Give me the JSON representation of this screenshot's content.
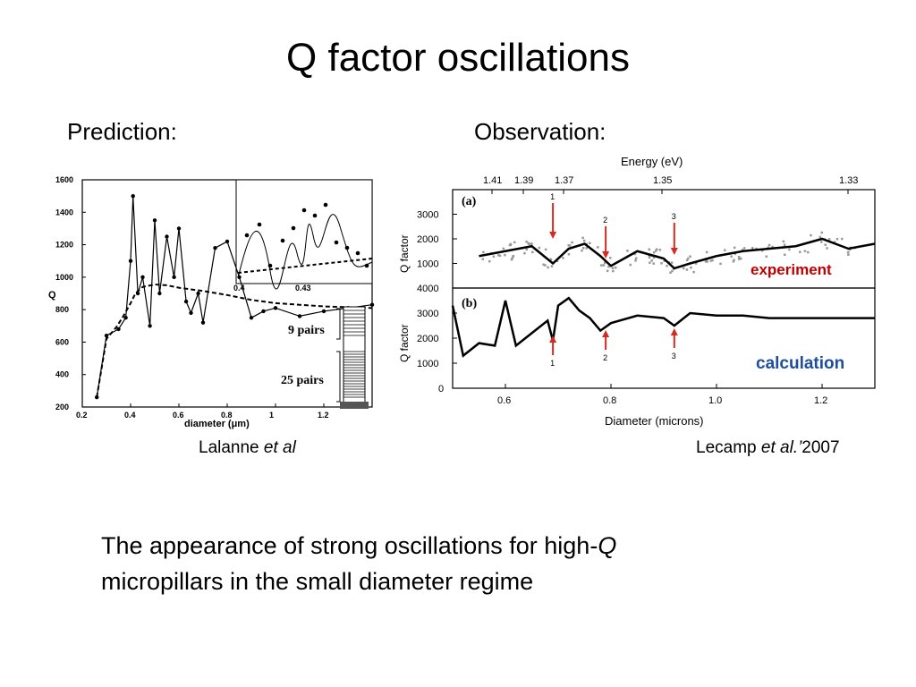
{
  "slide": {
    "title": "Q factor oscillations",
    "prediction_label": "Prediction:",
    "observation_label": "Observation:",
    "body_line1_pre": "The appearance of strong oscillations for high-",
    "body_line1_q": "Q",
    "body_line2": "micropillars in the small diameter regime"
  },
  "left_figure": {
    "caption_pre": "Lalanne ",
    "caption_em": "et al",
    "ylabel": "Q",
    "xlabel": "diameter (μm)",
    "yticks": [
      "1600",
      "1400",
      "1200",
      "1000",
      "800",
      "600",
      "400",
      "200"
    ],
    "xticks": [
      "0.2",
      "0.4",
      "0.6",
      "0.8",
      "1",
      "1.2"
    ],
    "inset_xticks": [
      "0.4",
      "0.43"
    ],
    "label_9pairs": "9 pairs",
    "label_25pairs": "25 pairs"
  },
  "right_figure": {
    "caption_pre": "Lecamp ",
    "caption_em": "et al.’",
    "caption_post": "2007",
    "top_axis_label": "Energy (eV)",
    "top_ticks": [
      "1.41",
      "1.39",
      "1.37",
      "1.35",
      "1.33"
    ],
    "panel_a_label": "(a)",
    "panel_b_label": "(b)",
    "ylabel": "Q factor",
    "a_yticks": [
      "3000",
      "2000",
      "1000"
    ],
    "b_yticks": [
      "4000",
      "3000",
      "2000",
      "1000",
      "0"
    ],
    "xticks": [
      "0.6",
      "0.8",
      "1.0",
      "1.2"
    ],
    "xlabel": "Diameter (microns)",
    "marker_labels": [
      "1",
      "2",
      "3"
    ],
    "experiment_label": "experiment",
    "calculation_label": "calculation",
    "colors": {
      "experiment": "#c00000",
      "calculation": "#1f4e9a",
      "arrow": "#d62a1e"
    }
  },
  "chart_data": [
    {
      "type": "line",
      "title": "",
      "xlabel": "diameter (μm)",
      "ylabel": "Q",
      "xlim": [
        0.2,
        1.4
      ],
      "ylim": [
        200,
        1600
      ],
      "series": [
        {
          "name": "9 pairs",
          "x": [
            0.26,
            0.3,
            0.34,
            0.37,
            0.4,
            0.42,
            0.45,
            0.5,
            0.55,
            0.6,
            0.65,
            0.7,
            0.8,
            0.9,
            1.0,
            1.1,
            1.2,
            1.3,
            1.4
          ],
          "y": [
            260,
            620,
            690,
            760,
            840,
            900,
            940,
            955,
            950,
            935,
            925,
            915,
            890,
            860,
            840,
            830,
            820,
            815,
            810
          ]
        },
        {
          "name": "25 pairs",
          "x": [
            0.26,
            0.3,
            0.35,
            0.38,
            0.4,
            0.41,
            0.43,
            0.45,
            0.48,
            0.5,
            0.52,
            0.55,
            0.58,
            0.6,
            0.63,
            0.65,
            0.68,
            0.7,
            0.75,
            0.8,
            0.85,
            0.9,
            0.95,
            1.0,
            1.1,
            1.2,
            1.3,
            1.4
          ],
          "y": [
            260,
            640,
            680,
            750,
            1100,
            1500,
            900,
            1000,
            700,
            1350,
            900,
            1250,
            1000,
            1300,
            850,
            780,
            900,
            720,
            1180,
            1220,
            1000,
            750,
            790,
            810,
            760,
            790,
            810,
            830
          ]
        }
      ]
    },
    {
      "type": "line",
      "title": "",
      "xlabel": "Diameter (microns)",
      "ylabel": "Q factor",
      "xlim": [
        0.5,
        1.3
      ],
      "ylim": [
        0,
        4000
      ],
      "series": [
        {
          "name": "experiment",
          "x": [
            0.55,
            0.6,
            0.65,
            0.69,
            0.72,
            0.75,
            0.78,
            0.8,
            0.85,
            0.9,
            0.92,
            0.95,
            1.0,
            1.05,
            1.1,
            1.15,
            1.2,
            1.25,
            1.3
          ],
          "y": [
            1300,
            1500,
            1700,
            1000,
            1600,
            1800,
            1300,
            900,
            1500,
            1200,
            800,
            1000,
            1300,
            1500,
            1600,
            1700,
            2000,
            1600,
            1800
          ]
        },
        {
          "name": "calculation",
          "x": [
            0.5,
            0.52,
            0.55,
            0.58,
            0.6,
            0.62,
            0.65,
            0.68,
            0.69,
            0.7,
            0.72,
            0.74,
            0.76,
            0.78,
            0.8,
            0.85,
            0.9,
            0.92,
            0.95,
            1.0,
            1.05,
            1.1,
            1.2,
            1.3
          ],
          "y": [
            3300,
            1300,
            1800,
            1700,
            3500,
            1700,
            2200,
            2700,
            1900,
            3300,
            3600,
            3100,
            2800,
            2300,
            2600,
            2900,
            2800,
            2500,
            3000,
            2900,
            2900,
            2800,
            2800,
            2800
          ]
        }
      ]
    }
  ]
}
